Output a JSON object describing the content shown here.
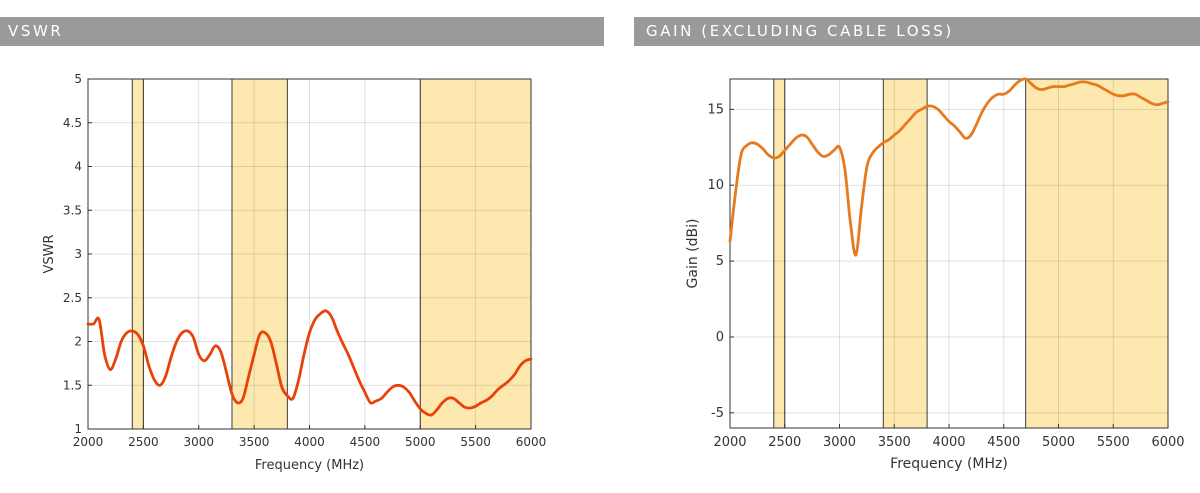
{
  "headers": {
    "left": "VSWR",
    "right": "GAIN (EXCLUDING CABLE LOSS)"
  },
  "colors": {
    "header_bg": "#9a9a9a",
    "band_fill": "#fde9b0",
    "line_vswr": "#e8420a",
    "line_gain": "#e87a1e"
  },
  "chart_data": [
    {
      "type": "line",
      "xlabel": "Frequency (MHz)",
      "ylabel": "VSWR",
      "xlim": [
        2000,
        6000
      ],
      "ylim": [
        1,
        5
      ],
      "xticks": [
        2000,
        2500,
        3000,
        3500,
        4000,
        4500,
        5000,
        5500,
        6000
      ],
      "yticks": [
        1,
        1.5,
        2,
        2.5,
        3,
        3.5,
        4,
        4.5,
        5
      ],
      "ytick_labels": [
        "1",
        "1.5",
        "2",
        "2.5",
        "3",
        "3.5",
        "4",
        "4.5",
        "5"
      ],
      "grid": true,
      "bands": [
        [
          2400,
          2500
        ],
        [
          3300,
          3800
        ],
        [
          5000,
          6000
        ]
      ],
      "series": [
        {
          "color": "#e8420a",
          "x": [
            2000,
            2050,
            2100,
            2150,
            2200,
            2250,
            2300,
            2350,
            2400,
            2450,
            2500,
            2550,
            2600,
            2650,
            2700,
            2750,
            2800,
            2850,
            2900,
            2950,
            3000,
            3050,
            3100,
            3150,
            3200,
            3250,
            3300,
            3350,
            3400,
            3450,
            3500,
            3550,
            3600,
            3650,
            3700,
            3750,
            3800,
            3850,
            3900,
            3950,
            4000,
            4050,
            4100,
            4150,
            4200,
            4250,
            4300,
            4350,
            4400,
            4450,
            4500,
            4550,
            4600,
            4650,
            4700,
            4750,
            4800,
            4850,
            4900,
            4950,
            5000,
            5050,
            5100,
            5150,
            5200,
            5250,
            5300,
            5350,
            5400,
            5450,
            5500,
            5550,
            5600,
            5650,
            5700,
            5750,
            5800,
            5850,
            5900,
            5950,
            6000
          ],
          "y": [
            2.2,
            2.2,
            2.25,
            1.85,
            1.68,
            1.8,
            2.0,
            2.1,
            2.12,
            2.08,
            1.95,
            1.72,
            1.56,
            1.5,
            1.6,
            1.82,
            2.0,
            2.1,
            2.12,
            2.05,
            1.85,
            1.78,
            1.85,
            1.95,
            1.88,
            1.65,
            1.4,
            1.3,
            1.35,
            1.6,
            1.85,
            2.08,
            2.1,
            2.0,
            1.75,
            1.48,
            1.38,
            1.35,
            1.55,
            1.85,
            2.1,
            2.25,
            2.32,
            2.35,
            2.28,
            2.12,
            1.98,
            1.85,
            1.7,
            1.55,
            1.42,
            1.3,
            1.32,
            1.35,
            1.42,
            1.48,
            1.5,
            1.48,
            1.42,
            1.32,
            1.23,
            1.18,
            1.16,
            1.22,
            1.3,
            1.35,
            1.35,
            1.3,
            1.25,
            1.24,
            1.26,
            1.3,
            1.33,
            1.38,
            1.45,
            1.5,
            1.55,
            1.62,
            1.72,
            1.78,
            1.8
          ]
        }
      ]
    },
    {
      "type": "line",
      "xlabel": "Frequency (MHz)",
      "ylabel": "Gain (dBi)",
      "xlim": [
        2000,
        6000
      ],
      "ylim": [
        -6,
        17
      ],
      "xticks": [
        2000,
        2500,
        3000,
        3500,
        4000,
        4500,
        5000,
        5500,
        6000
      ],
      "yticks": [
        -5,
        0,
        5,
        10,
        15
      ],
      "grid": true,
      "bands": [
        [
          2400,
          2500
        ],
        [
          3400,
          3800
        ],
        [
          4700,
          6000
        ]
      ],
      "series": [
        {
          "color": "#e87a1e",
          "x": [
            2000,
            2050,
            2100,
            2150,
            2200,
            2250,
            2300,
            2350,
            2400,
            2450,
            2500,
            2550,
            2600,
            2650,
            2700,
            2750,
            2800,
            2850,
            2900,
            2950,
            3000,
            3050,
            3100,
            3150,
            3200,
            3250,
            3300,
            3350,
            3400,
            3450,
            3500,
            3550,
            3600,
            3650,
            3700,
            3750,
            3800,
            3850,
            3900,
            3950,
            4000,
            4050,
            4100,
            4150,
            4200,
            4250,
            4300,
            4350,
            4400,
            4450,
            4500,
            4550,
            4600,
            4650,
            4700,
            4750,
            4800,
            4850,
            4900,
            4950,
            5000,
            5050,
            5100,
            5150,
            5200,
            5250,
            5300,
            5350,
            5400,
            5450,
            5500,
            5550,
            5600,
            5650,
            5700,
            5750,
            5800,
            5850,
            5900,
            5950,
            6000
          ],
          "y": [
            6.3,
            9.5,
            12.0,
            12.6,
            12.8,
            12.7,
            12.4,
            12.0,
            11.8,
            11.9,
            12.3,
            12.7,
            13.1,
            13.3,
            13.2,
            12.7,
            12.2,
            11.9,
            12.0,
            12.3,
            12.5,
            11.0,
            7.5,
            5.4,
            8.5,
            11.2,
            12.1,
            12.5,
            12.8,
            13.0,
            13.3,
            13.6,
            14.0,
            14.4,
            14.8,
            15.0,
            15.2,
            15.2,
            15.0,
            14.6,
            14.2,
            13.9,
            13.5,
            13.1,
            13.3,
            14.0,
            14.8,
            15.4,
            15.8,
            16.0,
            16.0,
            16.2,
            16.6,
            16.9,
            17.0,
            16.7,
            16.4,
            16.3,
            16.4,
            16.5,
            16.5,
            16.5,
            16.6,
            16.7,
            16.8,
            16.8,
            16.7,
            16.6,
            16.4,
            16.2,
            16.0,
            15.9,
            15.9,
            16.0,
            16.0,
            15.8,
            15.6,
            15.4,
            15.3,
            15.4,
            15.5
          ]
        }
      ]
    }
  ]
}
